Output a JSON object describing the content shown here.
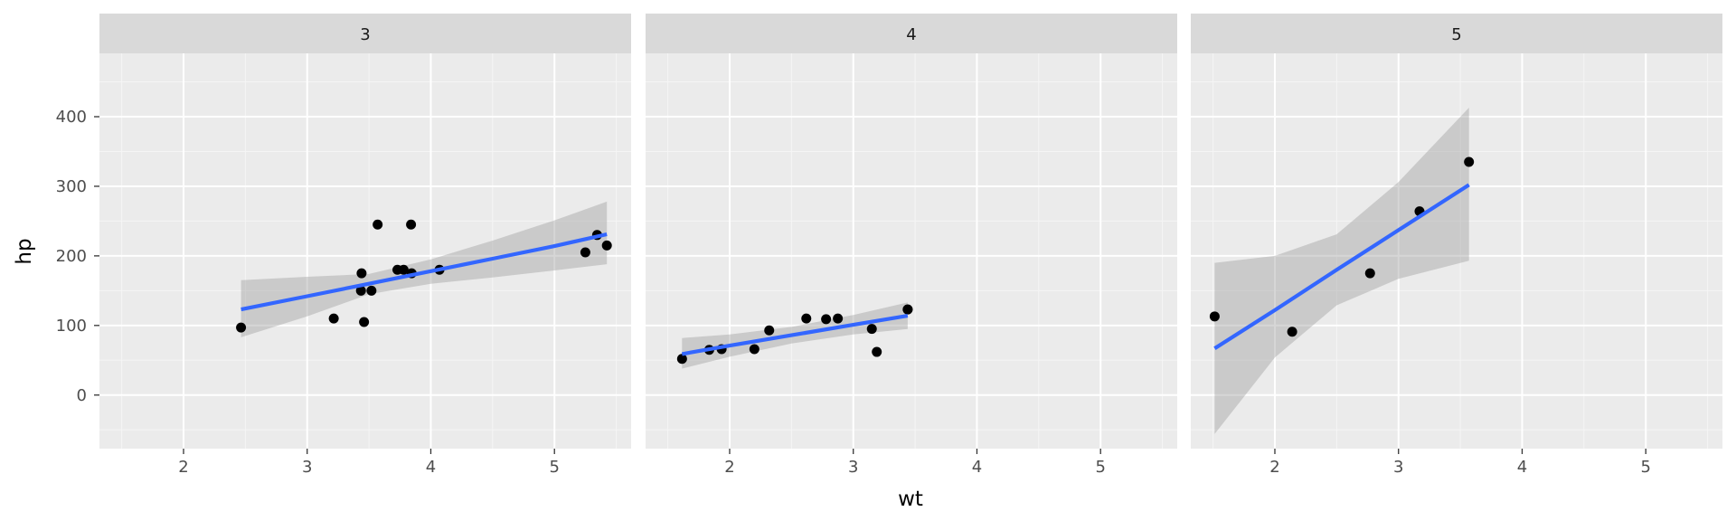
{
  "chart_data": {
    "type": "scatter",
    "facet_variable": "gear",
    "xlabel": "wt",
    "ylabel": "hp",
    "xlim": [
      1.32,
      5.62
    ],
    "ylim": [
      -77,
      491
    ],
    "x_ticks": [
      2,
      3,
      4,
      5
    ],
    "y_ticks": [
      0,
      100,
      200,
      300,
      400
    ],
    "x_tick_labels": [
      "2",
      "3",
      "4",
      "5"
    ],
    "y_tick_labels": [
      "0",
      "100",
      "200",
      "300",
      "400"
    ],
    "grid": true,
    "legend": "none",
    "colors": {
      "panel_bg": "#ebebeb",
      "strip_bg": "#d9d9d9",
      "grid_major": "#ffffff",
      "grid_minor": "#f5f5f5",
      "point": "#000000",
      "fit_line": "#3366ff",
      "ribbon": "#999999"
    },
    "panels": [
      {
        "label": "3",
        "points": [
          {
            "x": 2.465,
            "y": 97
          },
          {
            "x": 3.215,
            "y": 110
          },
          {
            "x": 3.44,
            "y": 175
          },
          {
            "x": 3.46,
            "y": 105
          },
          {
            "x": 3.57,
            "y": 245
          },
          {
            "x": 4.07,
            "y": 180
          },
          {
            "x": 3.73,
            "y": 180
          },
          {
            "x": 3.78,
            "y": 180
          },
          {
            "x": 5.25,
            "y": 205
          },
          {
            "x": 5.424,
            "y": 215
          },
          {
            "x": 5.345,
            "y": 230
          },
          {
            "x": 3.52,
            "y": 150
          },
          {
            "x": 3.435,
            "y": 150
          },
          {
            "x": 3.84,
            "y": 245
          },
          {
            "x": 3.845,
            "y": 175
          }
        ],
        "fit": {
          "x": [
            2.465,
            3.0,
            3.5,
            4.0,
            4.5,
            5.0,
            5.424
          ],
          "y": [
            123,
            142,
            160,
            178,
            196,
            214,
            231
          ],
          "lower": [
            83,
            113,
            145,
            160,
            169,
            179,
            188
          ],
          "upper": [
            165,
            170,
            174,
            195,
            222,
            251,
            278
          ]
        }
      },
      {
        "label": "4",
        "points": [
          {
            "x": 2.62,
            "y": 110
          },
          {
            "x": 2.875,
            "y": 110
          },
          {
            "x": 2.32,
            "y": 93
          },
          {
            "x": 3.19,
            "y": 62
          },
          {
            "x": 3.15,
            "y": 95
          },
          {
            "x": 3.44,
            "y": 123
          },
          {
            "x": 3.44,
            "y": 123
          },
          {
            "x": 2.2,
            "y": 66
          },
          {
            "x": 1.615,
            "y": 52
          },
          {
            "x": 1.835,
            "y": 65
          },
          {
            "x": 1.935,
            "y": 66
          },
          {
            "x": 2.78,
            "y": 109
          }
        ],
        "fit": {
          "x": [
            1.615,
            2.0,
            2.5,
            3.0,
            3.44
          ],
          "y": [
            59,
            71,
            86,
            101,
            114
          ],
          "lower": [
            38,
            55,
            74,
            87,
            95
          ],
          "upper": [
            82,
            87,
            98,
            115,
            133
          ]
        }
      },
      {
        "label": "5",
        "points": [
          {
            "x": 2.14,
            "y": 91
          },
          {
            "x": 1.513,
            "y": 113
          },
          {
            "x": 3.17,
            "y": 264
          },
          {
            "x": 2.77,
            "y": 175
          },
          {
            "x": 3.57,
            "y": 335
          }
        ],
        "fit": {
          "x": [
            1.513,
            2.0,
            2.5,
            3.0,
            3.57
          ],
          "y": [
            67,
            122,
            180,
            237,
            302
          ],
          "lower": [
            -56,
            54,
            129,
            167,
            193
          ],
          "upper": [
            190,
            200,
            231,
            306,
            413
          ]
        }
      }
    ]
  }
}
